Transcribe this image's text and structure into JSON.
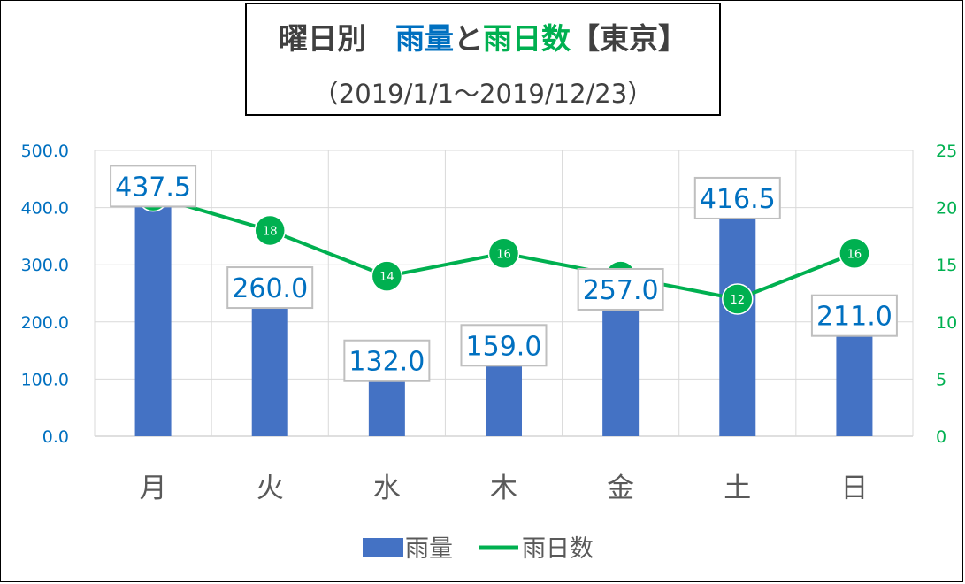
{
  "title": {
    "part1": "曜日別　",
    "part2": "雨量",
    "part3": "と",
    "part4": "雨日数",
    "part5": "【東京】",
    "subtitle": "（2019/1/1～2019/12/23）"
  },
  "colors": {
    "rain": "#4472C4",
    "days": "#00B050",
    "left_axis": "#0070C0",
    "right_axis": "#00B050",
    "title_text": "#404040",
    "rain_title": "#0070C0",
    "days_title": "#00B050"
  },
  "chart_data": {
    "type": "bar",
    "categories": [
      "月",
      "火",
      "水",
      "木",
      "金",
      "土",
      "日"
    ],
    "series": [
      {
        "name": "雨量",
        "type": "bar",
        "axis": "left",
        "values": [
          437.5,
          260.0,
          132.0,
          159.0,
          257.0,
          416.5,
          211.0
        ],
        "labels": [
          "437.5",
          "260.0",
          "132.0",
          "159.0",
          "257.0",
          "416.5",
          "211.0"
        ]
      },
      {
        "name": "雨日数",
        "type": "line",
        "axis": "right",
        "values": [
          21,
          18,
          14,
          16,
          14,
          12,
          16
        ],
        "labels": [
          "21",
          "18",
          "14",
          "16",
          "14",
          "12",
          "16"
        ]
      }
    ],
    "left_axis": {
      "ylim": [
        0,
        500
      ],
      "ticks": [
        0,
        100,
        200,
        300,
        400,
        500
      ],
      "tick_labels": [
        "0.0",
        "100.0",
        "200.0",
        "300.0",
        "400.0",
        "500.0"
      ]
    },
    "right_axis": {
      "ylim": [
        0,
        25
      ],
      "ticks": [
        0,
        5,
        10,
        15,
        20,
        25
      ],
      "tick_labels": [
        "0",
        "5",
        "10",
        "15",
        "20",
        "25"
      ]
    },
    "grid": true,
    "legend": {
      "position": "bottom",
      "entries": [
        "雨量",
        "雨日数"
      ]
    }
  }
}
